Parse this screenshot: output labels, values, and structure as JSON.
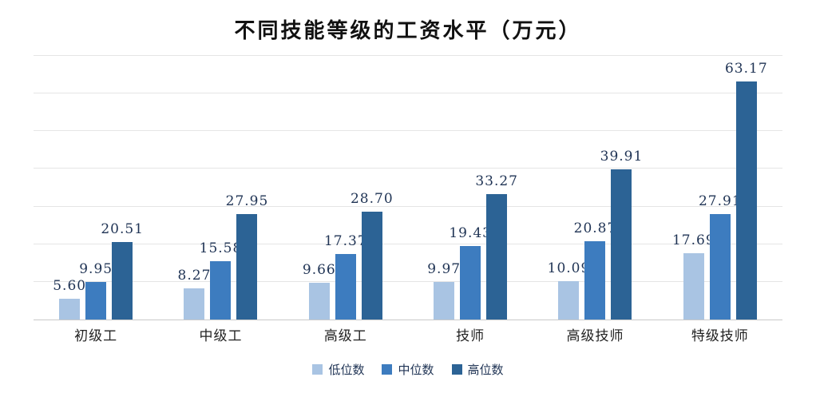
{
  "chart_data": {
    "type": "bar",
    "title": "不同技能等级的工资水平（万元）",
    "categories": [
      "初级工",
      "中级工",
      "高级工",
      "技师",
      "高级技师",
      "特级技师"
    ],
    "series": [
      {
        "name": "低位数",
        "color": "#a9c4e3",
        "values": [
          5.6,
          8.27,
          9.66,
          9.97,
          10.09,
          17.69
        ],
        "labels": [
          "5.60",
          "8.27",
          "9.66",
          "9.97",
          "10.09",
          "17.69"
        ]
      },
      {
        "name": "中位数",
        "color": "#3d7cbf",
        "values": [
          9.95,
          15.58,
          17.37,
          19.43,
          20.87,
          27.91
        ],
        "labels": [
          "9.95",
          "15.58",
          "17.37",
          "19.43",
          "20.87",
          "27.91"
        ]
      },
      {
        "name": "高位数",
        "color": "#2c6395",
        "values": [
          20.51,
          27.95,
          28.7,
          33.27,
          39.91,
          63.17
        ],
        "labels": [
          "20.51",
          "27.95",
          "28.70",
          "33.27",
          "39.91",
          "63.17"
        ]
      }
    ],
    "ylim": [
      0,
      70
    ],
    "grid_step": 10,
    "grid": true,
    "legend_position": "bottom",
    "value_labels": true,
    "label_color": "#1f3354",
    "grid_color": "#e5e5e5",
    "axis_color": "#c9c9c9",
    "xlabel": "",
    "ylabel": ""
  }
}
